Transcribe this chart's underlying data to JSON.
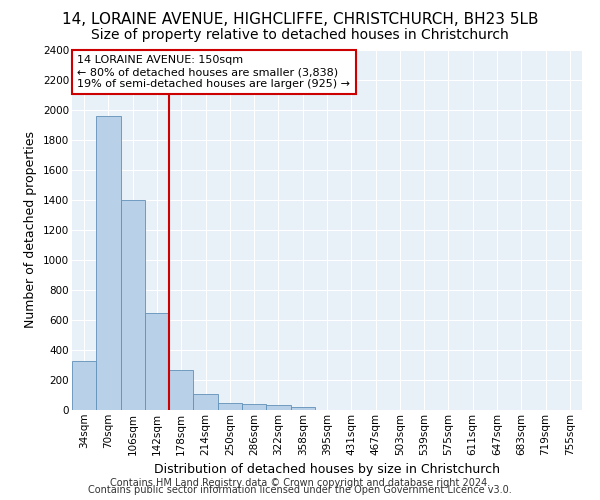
{
  "title_line1": "14, LORAINE AVENUE, HIGHCLIFFE, CHRISTCHURCH, BH23 5LB",
  "title_line2": "Size of property relative to detached houses in Christchurch",
  "xlabel": "Distribution of detached houses by size in Christchurch",
  "ylabel": "Number of detached properties",
  "footer_line1": "Contains HM Land Registry data © Crown copyright and database right 2024.",
  "footer_line2": "Contains public sector information licensed under the Open Government Licence v3.0.",
  "bar_labels": [
    "34sqm",
    "70sqm",
    "106sqm",
    "142sqm",
    "178sqm",
    "214sqm",
    "250sqm",
    "286sqm",
    "322sqm",
    "358sqm",
    "395sqm",
    "431sqm",
    "467sqm",
    "503sqm",
    "539sqm",
    "575sqm",
    "611sqm",
    "647sqm",
    "683sqm",
    "719sqm",
    "755sqm"
  ],
  "bar_values": [
    325,
    1960,
    1400,
    645,
    270,
    105,
    50,
    42,
    35,
    22,
    0,
    0,
    0,
    0,
    0,
    0,
    0,
    0,
    0,
    0,
    0
  ],
  "bar_color": "#b8d0e8",
  "bar_edge_color": "#6090b8",
  "property_line_x": 3.5,
  "annotation_title": "14 LORAINE AVENUE: 150sqm",
  "annotation_line2": "← 80% of detached houses are smaller (3,838)",
  "annotation_line3": "19% of semi-detached houses are larger (925) →",
  "annotation_box_color": "#ffffff",
  "annotation_box_edge": "#cc0000",
  "vline_color": "#cc0000",
  "ylim": [
    0,
    2400
  ],
  "yticks": [
    0,
    200,
    400,
    600,
    800,
    1000,
    1200,
    1400,
    1600,
    1800,
    2000,
    2200,
    2400
  ],
  "bg_color": "#e8f0f8",
  "grid_color": "#ffffff",
  "title_fontsize": 11,
  "subtitle_fontsize": 10,
  "axis_label_fontsize": 9,
  "tick_fontsize": 7.5,
  "annotation_fontsize": 8,
  "footer_fontsize": 7
}
